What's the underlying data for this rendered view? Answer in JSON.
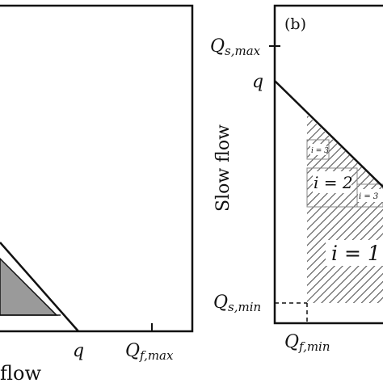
{
  "left_panel": {
    "x_axis_label": "flow",
    "ticks": {
      "q": "q",
      "qf_max": "Q",
      "qf_max_sub": "f,max"
    }
  },
  "right_panel": {
    "panel_label": "(b)",
    "y_axis_label": "Slow flow",
    "ticks": {
      "qs_max": "Q",
      "qs_max_sub": "s,max",
      "q": "q",
      "qs_min": "Q",
      "qs_min_sub": "s,min",
      "qf_min": "Q",
      "qf_min_sub": "f,min"
    },
    "regions": {
      "i1": "i = 1",
      "i2": "i = 2",
      "i3a": "i = 3",
      "i3b": "i = 3"
    }
  },
  "colors": {
    "line": "#111111",
    "shaded": "#9a9a9a",
    "hatch": "#555555"
  }
}
